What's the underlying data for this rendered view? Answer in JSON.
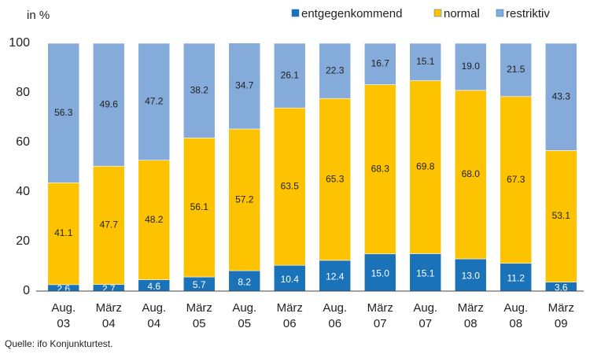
{
  "chart_data": {
    "type": "stacked_bar",
    "title": "in %",
    "source": "Quelle: ifo Konjunkturtest.",
    "categories": [
      "Aug. 03",
      "März 04",
      "Aug. 04",
      "März 05",
      "Aug. 05",
      "März 06",
      "Aug. 06",
      "März 07",
      "Aug. 07",
      "März 08",
      "Aug. 08",
      "März 09"
    ],
    "series": [
      {
        "name": "entgegenkommend",
        "color": "#1a72b8",
        "label_color": "#ffffff",
        "values": [
          2.6,
          2.7,
          4.6,
          5.7,
          8.2,
          10.4,
          12.4,
          15.0,
          15.1,
          13.0,
          11.2,
          3.6
        ],
        "value_labels": [
          "2.6",
          "2.7",
          "4.6",
          "5.7",
          "8.2",
          "10.4",
          "12.4",
          "15.0",
          "15.1",
          "13.0",
          "11.2",
          "3.6"
        ]
      },
      {
        "name": "normal",
        "color": "#fdc300",
        "label_color": "#222222",
        "values": [
          41.1,
          47.7,
          48.2,
          56.1,
          57.2,
          63.5,
          65.3,
          68.3,
          69.8,
          68.0,
          67.3,
          53.1
        ],
        "value_labels": [
          "41.1",
          "47.7",
          "48.2",
          "56.1",
          "57.2",
          "63.5",
          "65.3",
          "68.3",
          "69.8",
          "68.0",
          "67.3",
          "53.1"
        ]
      },
      {
        "name": "restriktiv",
        "color": "#84abd9",
        "label_color": "#222222",
        "values": [
          56.3,
          49.6,
          47.2,
          38.2,
          34.7,
          26.1,
          22.3,
          16.7,
          15.1,
          19.0,
          21.5,
          43.3
        ],
        "value_labels": [
          "56.3",
          "49.6",
          "47.2",
          "38.2",
          "34.7",
          "26.1",
          "22.3",
          "16.7",
          "15.1",
          "19.0",
          "21.5",
          "43.3"
        ]
      }
    ],
    "ylim": [
      0,
      100
    ],
    "yticks": [
      0,
      20,
      40,
      60,
      80,
      100
    ],
    "grid": false,
    "legend": "top-right"
  }
}
